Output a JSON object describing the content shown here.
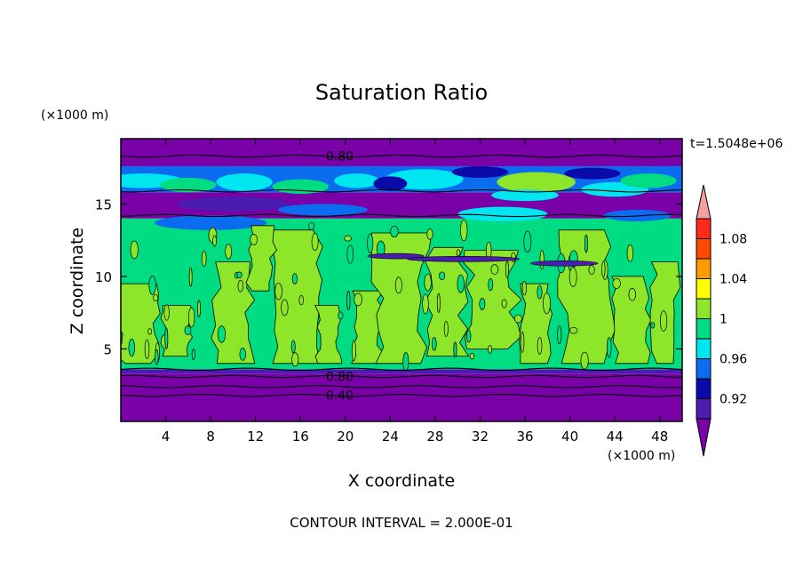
{
  "chart_data": {
    "type": "heatmap",
    "title": "Saturation Ratio",
    "xlabel": "X coordinate",
    "ylabel": "Z coordinate",
    "x_unit": "(×1000 m)",
    "y_unit": "(×1000 m)",
    "time_label": "t=1.5048e+06",
    "footer": "CONTOUR INTERVAL = 2.000E-01",
    "xlim": [
      0,
      50
    ],
    "ylim": [
      0,
      19.5
    ],
    "x_ticks": [
      4,
      8,
      12,
      16,
      20,
      24,
      28,
      32,
      36,
      40,
      44,
      48
    ],
    "y_ticks": [
      5,
      10,
      15
    ],
    "contour_labels": [
      {
        "text": "0.80",
        "x": 19.5,
        "y": 18.3
      },
      {
        "text": "0.80",
        "x": 19.5,
        "y": 3.1
      },
      {
        "text": "0.40",
        "x": 19.5,
        "y": 1.8
      }
    ],
    "colorbar": {
      "levels": [
        0.92,
        0.94,
        0.96,
        0.98,
        1.0,
        1.02,
        1.04,
        1.06,
        1.08,
        1.1
      ],
      "labels": [
        "0.92",
        "0.96",
        "1",
        "1.04",
        "1.08"
      ],
      "colors": [
        "#7a00a8",
        "#4b1cb0",
        "#0a0aa8",
        "#0b6cf0",
        "#00e6f0",
        "#00dc82",
        "#8ee62a",
        "#ffff00",
        "#ff9a00",
        "#ff4a00",
        "#ff2a1a",
        "#f4a0a0"
      ]
    },
    "bands": [
      {
        "z": [
          0.0,
          3.3
        ],
        "value": "< 0.92",
        "color": "#7a00a8"
      },
      {
        "z": [
          3.3,
          3.6
        ],
        "value": "0.92-0.94",
        "color": "#4b1cb0"
      },
      {
        "z": [
          3.6,
          14.0
        ],
        "value": "0.98-1.02",
        "color": "#00dc82"
      },
      {
        "z": [
          14.0,
          15.8
        ],
        "value": "< 0.92",
        "color": "#7a00a8"
      },
      {
        "z": [
          15.8,
          17.6
        ],
        "value": "0.94-1.00",
        "color": "#0b6cf0"
      },
      {
        "z": [
          17.6,
          19.5
        ],
        "value": "< 0.92",
        "color": "#7a00a8"
      }
    ]
  }
}
